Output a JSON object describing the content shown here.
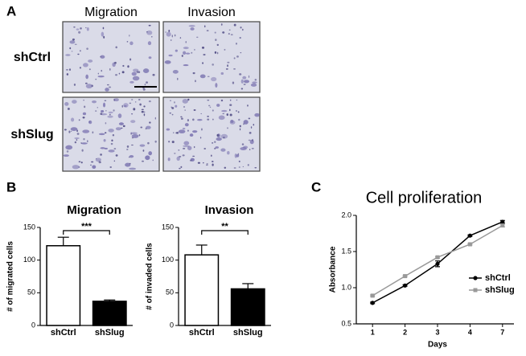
{
  "panel_labels": [
    "A",
    "B",
    "C"
  ],
  "panel_a": {
    "columns": [
      "Migration",
      "Invasion"
    ],
    "rows": [
      "shCtrl",
      "shSlug"
    ]
  },
  "chart_data": [
    {
      "type": "bar",
      "title": "Migration",
      "y_label": "# of migrated cells",
      "categories": [
        "shCtrl",
        "shSlug"
      ],
      "values": [
        122,
        37
      ],
      "errors": [
        13,
        2
      ],
      "colors": [
        "#ffffff",
        "#000000"
      ],
      "ylim": [
        0,
        150
      ],
      "yticks": [
        0,
        50,
        100,
        150
      ],
      "annotation": "***"
    },
    {
      "type": "bar",
      "title": "Invasion",
      "y_label": "# of invaded cells",
      "categories": [
        "shCtrl",
        "shSlug"
      ],
      "values": [
        108,
        56
      ],
      "errors": [
        15,
        8
      ],
      "colors": [
        "#ffffff",
        "#000000"
      ],
      "ylim": [
        0,
        150
      ],
      "yticks": [
        0,
        50,
        100,
        150
      ],
      "annotation": "**"
    },
    {
      "type": "line",
      "title": "Cell proliferation",
      "x_label": "Days",
      "y_label": "Absorbance",
      "categories": [
        "1",
        "2",
        "3",
        "4",
        "7"
      ],
      "series": [
        {
          "name": "shCtrl",
          "color": "#000000",
          "marker": "circle",
          "values": [
            0.79,
            1.03,
            1.33,
            1.72,
            1.91
          ],
          "errors": [
            0.01,
            0.01,
            0.04,
            0.01,
            0.02
          ]
        },
        {
          "name": "shSlug",
          "color": "#999999",
          "marker": "square",
          "values": [
            0.89,
            1.16,
            1.42,
            1.6,
            1.86
          ],
          "errors": [
            0.01,
            0.01,
            0.01,
            0.01,
            0.02
          ]
        }
      ],
      "ylim": [
        0.5,
        2.0
      ],
      "yticks": [
        0.5,
        {
          "value": 1.0,
          "label": "1.0"
        },
        1.5,
        {
          "value": 2.0,
          "label": "2.0"
        }
      ],
      "legend": "right"
    }
  ]
}
